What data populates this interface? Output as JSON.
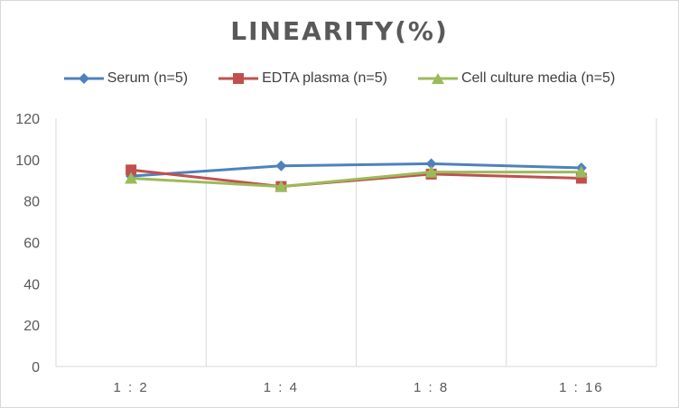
{
  "chart_data": {
    "type": "line",
    "title": "LINEARITY(%)",
    "xlabel": "",
    "ylabel": "",
    "categories": [
      "1:2",
      "1:4",
      "1:8",
      "1:16"
    ],
    "category_labels": [
      "1 : 2",
      "1 : 4",
      "1 : 8",
      "1 : 16"
    ],
    "ylim": [
      0,
      120
    ],
    "yticks": [
      0,
      20,
      40,
      60,
      80,
      100,
      120
    ],
    "grid": "vertical",
    "legend_position": "top",
    "series": [
      {
        "name": "Serum (n=5)",
        "values": [
          92,
          97,
          98,
          96
        ],
        "color": "#4f81bd",
        "marker": "diamond"
      },
      {
        "name": "EDTA plasma (n=5)",
        "values": [
          95,
          87,
          93,
          91
        ],
        "color": "#c0504d",
        "marker": "square"
      },
      {
        "name": "Cell culture media (n=5)",
        "values": [
          91,
          87,
          94,
          94
        ],
        "color": "#9bbb59",
        "marker": "triangle"
      }
    ]
  }
}
